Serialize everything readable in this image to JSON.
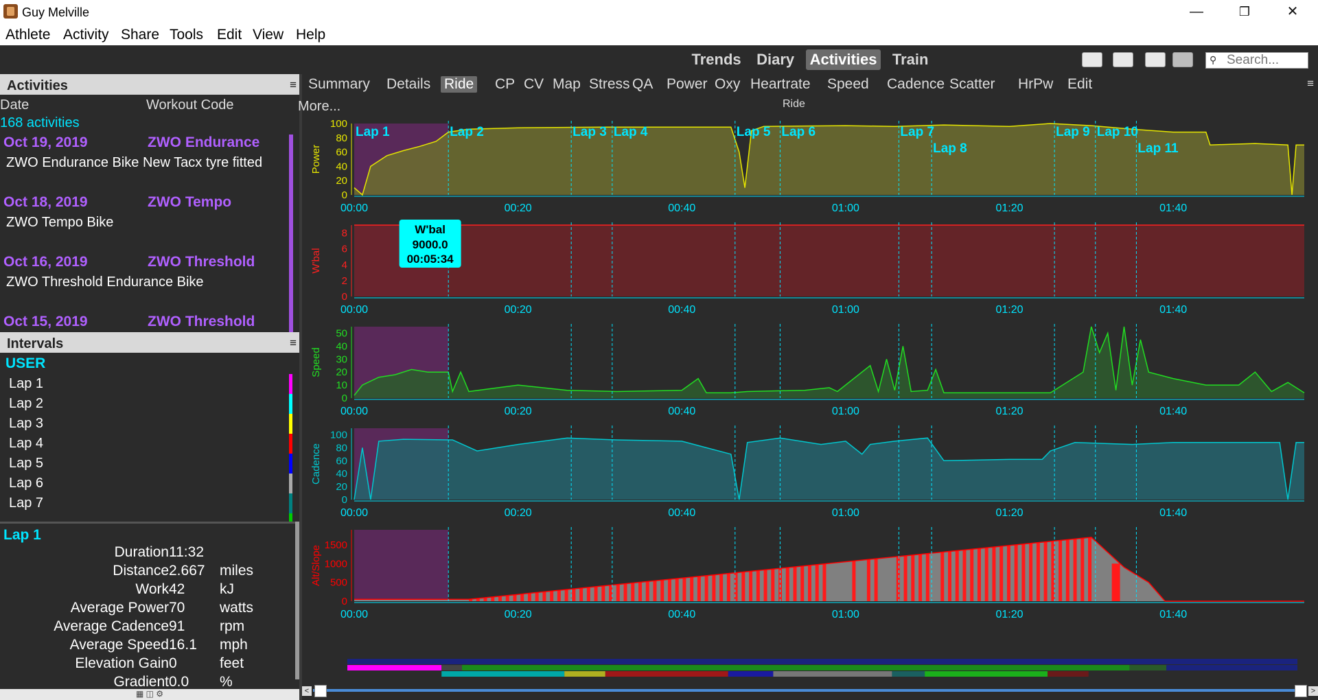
{
  "window": {
    "title": "Guy Melville"
  },
  "menu": [
    "Athlete",
    "Activity",
    "Share",
    "Tools",
    "Edit",
    "View",
    "Help"
  ],
  "views": [
    {
      "label": "Trends",
      "active": false
    },
    {
      "label": "Diary",
      "active": false
    },
    {
      "label": "Activities",
      "active": true
    },
    {
      "label": "Train",
      "active": false
    }
  ],
  "search": {
    "placeholder": "Search..."
  },
  "activities_panel": {
    "title": "Activities",
    "col_date": "Date",
    "col_code": "Workout Code",
    "count": "168 activities",
    "items": [
      {
        "date": "Oct 19, 2019",
        "code": "ZWO Endurance",
        "desc": "ZWO Endurance Bike New Tacx tyre fitted"
      },
      {
        "date": "Oct 18, 2019",
        "code": "ZWO Tempo",
        "desc": "ZWO Tempo Bike"
      },
      {
        "date": "Oct 16, 2019",
        "code": "ZWO Threshold",
        "desc": "ZWO Threshold Endurance Bike"
      },
      {
        "date": "Oct 15, 2019",
        "code": "ZWO Threshold",
        "desc": ""
      }
    ]
  },
  "intervals_panel": {
    "title": "Intervals",
    "group": "USER",
    "laps": [
      {
        "label": "Lap 1",
        "color": "#ff00ff"
      },
      {
        "label": "Lap 2",
        "color": "#00ffff"
      },
      {
        "label": "Lap 3",
        "color": "#ffff00"
      },
      {
        "label": "Lap 4",
        "color": "#ff0000"
      },
      {
        "label": "Lap 5",
        "color": "#0000ff"
      },
      {
        "label": "Lap 6",
        "color": "#aaaaaa"
      },
      {
        "label": "Lap 7",
        "color": "#008080"
      }
    ],
    "lap8_color": "#00cc00"
  },
  "lap_detail": {
    "title": "Lap 1",
    "rows": [
      {
        "label": "Duration",
        "value": "11:32",
        "unit": ""
      },
      {
        "label": "Distance",
        "value": "2.667",
        "unit": "miles"
      },
      {
        "label": "Work",
        "value": "42",
        "unit": "kJ"
      },
      {
        "label": "Average Power",
        "value": "70",
        "unit": "watts"
      },
      {
        "label": "Average Cadence",
        "value": "91",
        "unit": "rpm"
      },
      {
        "label": "Average Speed",
        "value": "16.1",
        "unit": "mph"
      },
      {
        "label": "Elevation Gain",
        "value": "0",
        "unit": "feet"
      },
      {
        "label": "Gradient",
        "value": "0.0",
        "unit": "%"
      }
    ]
  },
  "ride_tabs": [
    "Summary",
    "Details",
    "Ride",
    "CP",
    "CV",
    "Map",
    "Stress",
    "QA",
    "Power",
    "Oxy",
    "Heartrate",
    "Speed",
    "Cadence",
    "Scatter",
    "HrPw",
    "Edit"
  ],
  "ride_active_tab": "Ride",
  "more_label": "More...",
  "ride_title": "Ride",
  "chart_data": {
    "type": "area",
    "x_unit": "hh:mm",
    "x_range": [
      "00:00",
      "01:56"
    ],
    "x_ticks": [
      "00:00",
      "00:20",
      "00:40",
      "01:00",
      "01:20",
      "01:40"
    ],
    "laps": [
      {
        "name": "Lap 1",
        "start_min": 0
      },
      {
        "name": "Lap 2",
        "start_min": 11.5
      },
      {
        "name": "Lap 3",
        "start_min": 26.5
      },
      {
        "name": "Lap 4",
        "start_min": 31.5
      },
      {
        "name": "Lap 5",
        "start_min": 46.5
      },
      {
        "name": "Lap 6",
        "start_min": 52
      },
      {
        "name": "Lap 7",
        "start_min": 66.5
      },
      {
        "name": "Lap 8",
        "start_min": 70.5
      },
      {
        "name": "Lap 9",
        "start_min": 85.5
      },
      {
        "name": "Lap 10",
        "start_min": 90.5
      },
      {
        "name": "Lap 11",
        "start_min": 95.5
      }
    ],
    "panels": [
      {
        "ylabel": "Power",
        "color": "#e6e600",
        "fill": "#6a6a30",
        "yticks": [
          "100",
          "80",
          "60",
          "40",
          "20",
          "0"
        ],
        "ymax": 100,
        "points": [
          [
            0,
            10
          ],
          [
            1,
            0
          ],
          [
            2,
            40
          ],
          [
            4,
            55
          ],
          [
            6,
            62
          ],
          [
            8,
            68
          ],
          [
            10,
            75
          ],
          [
            11.5,
            88
          ],
          [
            14,
            92
          ],
          [
            20,
            94
          ],
          [
            30,
            95
          ],
          [
            40,
            95
          ],
          [
            46,
            95
          ],
          [
            47,
            60
          ],
          [
            47.7,
            10
          ],
          [
            48.5,
            90
          ],
          [
            50,
            96
          ],
          [
            60,
            97
          ],
          [
            66,
            96
          ],
          [
            72,
            98
          ],
          [
            80,
            96
          ],
          [
            85,
            100
          ],
          [
            90,
            97
          ],
          [
            95,
            92
          ],
          [
            100,
            88
          ],
          [
            104,
            88
          ],
          [
            104.5,
            70
          ],
          [
            110,
            72
          ],
          [
            114,
            70
          ],
          [
            114.5,
            0
          ],
          [
            115,
            70
          ],
          [
            116,
            70
          ]
        ]
      },
      {
        "ylabel": "W'bal",
        "color": "#ff2020",
        "fill": "#6a2428",
        "yticks": [
          "8",
          "6",
          "4",
          "2",
          "0"
        ],
        "ymax": 9,
        "tooltip": {
          "title": "W'bal",
          "value": "9000.0",
          "time": "00:05:34"
        },
        "points": [
          [
            0,
            9
          ],
          [
            116,
            9
          ]
        ]
      },
      {
        "ylabel": "Speed",
        "color": "#22dd22",
        "fill": "#2e5a2e",
        "yticks": [
          "50",
          "40",
          "30",
          "20",
          "10",
          "0"
        ],
        "ymax": 55,
        "points": [
          [
            0,
            2
          ],
          [
            1,
            10
          ],
          [
            3,
            16
          ],
          [
            5,
            18
          ],
          [
            7,
            22
          ],
          [
            9,
            20
          ],
          [
            11.5,
            20
          ],
          [
            12,
            5
          ],
          [
            13,
            20
          ],
          [
            14,
            5
          ],
          [
            20,
            10
          ],
          [
            26,
            6
          ],
          [
            32,
            5
          ],
          [
            40,
            6
          ],
          [
            42,
            15
          ],
          [
            43,
            4
          ],
          [
            46,
            4
          ],
          [
            48,
            5
          ],
          [
            55,
            6
          ],
          [
            58,
            8
          ],
          [
            59,
            5
          ],
          [
            63,
            25
          ],
          [
            64,
            5
          ],
          [
            65,
            30
          ],
          [
            66,
            6
          ],
          [
            67,
            40
          ],
          [
            68,
            5
          ],
          [
            70,
            6
          ],
          [
            71,
            22
          ],
          [
            72,
            4
          ],
          [
            85,
            4
          ],
          [
            89,
            20
          ],
          [
            90,
            55
          ],
          [
            91,
            35
          ],
          [
            92,
            50
          ],
          [
            93,
            6
          ],
          [
            94,
            55
          ],
          [
            95,
            10
          ],
          [
            96,
            45
          ],
          [
            97,
            20
          ],
          [
            100,
            15
          ],
          [
            104,
            10
          ],
          [
            108,
            10
          ],
          [
            110,
            20
          ],
          [
            112,
            5
          ],
          [
            114,
            12
          ],
          [
            116,
            4
          ]
        ]
      },
      {
        "ylabel": "Cadence",
        "color": "#00c8d0",
        "fill": "#26606a",
        "yticks": [
          "100",
          "80",
          "60",
          "40",
          "20",
          "0"
        ],
        "ymax": 110,
        "points": [
          [
            0,
            0
          ],
          [
            1,
            80
          ],
          [
            2,
            0
          ],
          [
            3,
            90
          ],
          [
            6,
            93
          ],
          [
            11.5,
            92
          ],
          [
            12,
            92
          ],
          [
            15,
            75
          ],
          [
            20,
            85
          ],
          [
            26,
            95
          ],
          [
            32,
            92
          ],
          [
            40,
            90
          ],
          [
            46,
            70
          ],
          [
            47,
            0
          ],
          [
            48,
            88
          ],
          [
            52,
            95
          ],
          [
            57,
            85
          ],
          [
            60,
            90
          ],
          [
            62,
            70
          ],
          [
            63,
            85
          ],
          [
            66,
            90
          ],
          [
            70,
            95
          ],
          [
            72,
            60
          ],
          [
            80,
            62
          ],
          [
            84,
            62
          ],
          [
            85,
            75
          ],
          [
            88,
            88
          ],
          [
            95,
            85
          ],
          [
            100,
            88
          ],
          [
            113,
            88
          ],
          [
            114,
            0
          ],
          [
            115,
            88
          ],
          [
            116,
            88
          ]
        ]
      },
      {
        "ylabel": "Alt/Slope",
        "color": "#ff0000",
        "fill": "#8a8a8a",
        "yticks": [
          "1500",
          "1000",
          "500",
          "0"
        ],
        "ymax": 1900,
        "points": [
          [
            0,
            50
          ],
          [
            11.5,
            50
          ],
          [
            14,
            50
          ],
          [
            90,
            1700
          ],
          [
            94,
            900
          ],
          [
            97,
            500
          ],
          [
            99,
            0
          ],
          [
            116,
            0
          ]
        ]
      }
    ]
  }
}
